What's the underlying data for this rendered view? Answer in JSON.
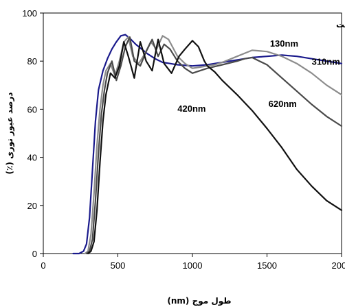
{
  "chart_data": {
    "type": "line",
    "title": "قبل از انجام باز پخت",
    "xlabel": "طول موج (nm)",
    "ylabel": "درصد عبور نوری (٪)",
    "xlim": [
      0,
      2000
    ],
    "ylim": [
      0,
      100
    ],
    "xticks": [
      "0",
      "500",
      "1000",
      "1500",
      "2000"
    ],
    "yticks": [
      "0",
      "20",
      "40",
      "60",
      "80",
      "100"
    ],
    "grid": false,
    "series": [
      {
        "name": "130nm",
        "color": "#1a1a8c",
        "x": [
          200,
          240,
          270,
          290,
          310,
          330,
          350,
          370,
          400,
          430,
          460,
          490,
          520,
          550,
          580,
          620,
          660,
          700,
          750,
          800,
          850,
          900,
          1000,
          1100,
          1200,
          1300,
          1400,
          1500,
          1600,
          1700,
          1800,
          1900,
          2000
        ],
        "y": [
          0,
          0,
          1,
          4,
          15,
          35,
          55,
          68,
          76,
          81,
          85,
          88,
          90.5,
          91,
          89.5,
          87,
          85,
          83,
          81,
          79.5,
          79,
          78.5,
          78,
          78.5,
          79.5,
          80.5,
          81.5,
          82,
          82.5,
          82,
          81,
          80,
          79
        ]
      },
      {
        "name": "310nm",
        "color": "#8c8c8c",
        "x": [
          280,
          300,
          320,
          340,
          360,
          380,
          400,
          420,
          450,
          480,
          510,
          540,
          570,
          600,
          640,
          680,
          720,
          760,
          800,
          840,
          900,
          950,
          1000,
          1050,
          1100,
          1150,
          1200,
          1300,
          1400,
          1500,
          1600,
          1700,
          1800,
          1900,
          2000
        ],
        "y": [
          0,
          1,
          8,
          25,
          45,
          60,
          70,
          76,
          79,
          74,
          80,
          88,
          90,
          82,
          79,
          83,
          88,
          85,
          90.5,
          89,
          82,
          79,
          77,
          77.5,
          78,
          78.5,
          79.5,
          82,
          84.5,
          84,
          82,
          79,
          75,
          70,
          66
        ]
      },
      {
        "name": "620nm",
        "color": "#4a4a4a",
        "x": [
          290,
          310,
          330,
          350,
          370,
          390,
          410,
          430,
          460,
          490,
          520,
          550,
          580,
          610,
          650,
          690,
          730,
          770,
          810,
          850,
          900,
          950,
          1000,
          1050,
          1100,
          1200,
          1300,
          1350,
          1400,
          1450,
          1500,
          1600,
          1700,
          1800,
          1900,
          2000
        ],
        "y": [
          0,
          1,
          6,
          22,
          42,
          58,
          68,
          75,
          80,
          72,
          78,
          86,
          90,
          80,
          78,
          84,
          89,
          82,
          87,
          85,
          80,
          77,
          75,
          76,
          77,
          78.5,
          80,
          81,
          81.5,
          80,
          78.5,
          73,
          67.5,
          62,
          57,
          53
        ]
      },
      {
        "name": "420nm",
        "color": "#111111",
        "x": [
          300,
          320,
          340,
          360,
          380,
          400,
          420,
          450,
          480,
          510,
          540,
          570,
          610,
          650,
          690,
          730,
          770,
          810,
          860,
          910,
          950,
          1000,
          1040,
          1080,
          1100,
          1150,
          1200,
          1300,
          1400,
          1500,
          1600,
          1700,
          1800,
          1900,
          2000
        ],
        "y": [
          0,
          1,
          5,
          18,
          38,
          55,
          66,
          75,
          73,
          78,
          88,
          82,
          73,
          88,
          80,
          76,
          89,
          79,
          75,
          82,
          85,
          88.5,
          86,
          80,
          78,
          75.5,
          72,
          66,
          59.5,
          52,
          44,
          35,
          28,
          22,
          18
        ]
      }
    ],
    "annotations": [
      {
        "text": "130nm",
        "x": 1520,
        "y": 86
      },
      {
        "text": "310nm",
        "x": 1800,
        "y": 78.5
      },
      {
        "text": "620nm",
        "x": 1510,
        "y": 61
      },
      {
        "text": "420nm",
        "x": 900,
        "y": 59
      }
    ]
  }
}
